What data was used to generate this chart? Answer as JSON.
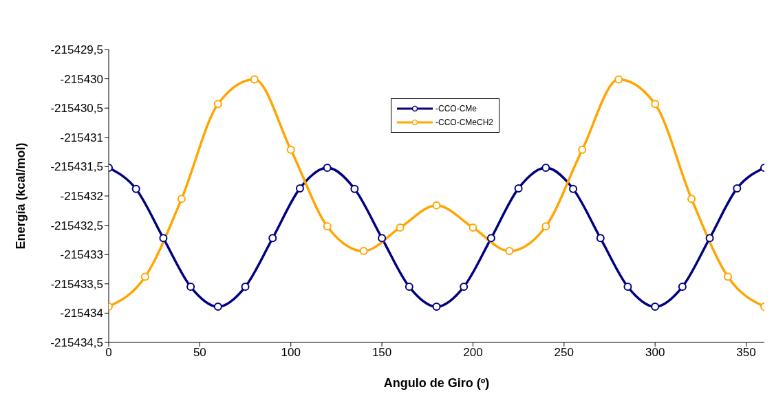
{
  "chart_data": {
    "type": "line",
    "xlabel": "Angulo de Giro (º)",
    "ylabel": "Energía (kcal/mol)",
    "xlim": [
      0,
      360
    ],
    "xticks": [
      0,
      50,
      100,
      150,
      200,
      250,
      300,
      350
    ],
    "ylim": [
      -215434.5,
      -215429.5
    ],
    "yticks": [
      {
        "value": -215434.5,
        "label": "-215434,5"
      },
      -215434,
      {
        "value": -215433.5,
        "label": "-215433,5"
      },
      -215433,
      {
        "value": -215432.5,
        "label": "-215432,5"
      },
      -215432,
      {
        "value": -215431.5,
        "label": "-215431,5"
      },
      -215431,
      {
        "value": -215430.5,
        "label": "-215430,5"
      },
      -215430,
      {
        "value": -215429.5,
        "label": "-215429,5"
      }
    ],
    "grid": false,
    "legend": "top",
    "marker": "circle",
    "line_style": "solid",
    "series": [
      {
        "name": "-CCO-CMe",
        "color": "#000080",
        "x": [
          0,
          15,
          30,
          45,
          60,
          75,
          90,
          105,
          120,
          135,
          150,
          165,
          180,
          195,
          210,
          225,
          240,
          255,
          270,
          285,
          300,
          315,
          330,
          345,
          360
        ],
        "values": [
          -215431.52,
          -215431.88,
          -215432.72,
          -215433.55,
          -215433.89,
          -215433.55,
          -215432.72,
          -215431.87,
          -215431.52,
          -215431.88,
          -215432.72,
          -215433.55,
          -215433.89,
          -215433.55,
          -215432.72,
          -215431.87,
          -215431.52,
          -215431.88,
          -215432.72,
          -215433.55,
          -215433.89,
          -215433.55,
          -215432.72,
          -215431.87,
          -215431.52
        ]
      },
      {
        "name": "-CCO-CMeCH2",
        "color": "#ffa500",
        "x": [
          0,
          20,
          40,
          60,
          80,
          100,
          120,
          140,
          160,
          180,
          200,
          220,
          240,
          260,
          280,
          300,
          320,
          340,
          360
        ],
        "values": [
          -215433.89,
          -215433.38,
          -215432.05,
          -215430.43,
          -215430.01,
          -215431.21,
          -215432.52,
          -215432.94,
          -215432.54,
          -215432.16,
          -215432.54,
          -215432.94,
          -215432.52,
          -215431.21,
          -215430.01,
          -215430.43,
          -215432.05,
          -215433.38,
          -215433.89
        ]
      }
    ]
  }
}
